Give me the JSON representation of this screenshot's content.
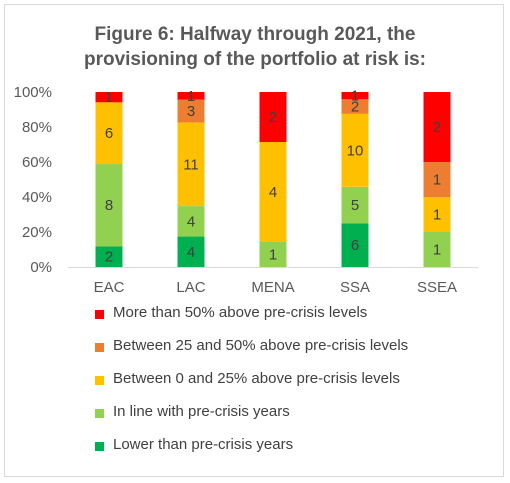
{
  "chart_data": {
    "type": "bar",
    "stacked": "percent",
    "title": "Figure 6: Halfway through 2021, the provisioning of the portfolio at risk is:",
    "title_lines": [
      "Figure 6: Halfway through 2021, the",
      "provisioning of the portfolio at risk is:"
    ],
    "categories": [
      "EAC",
      "LAC",
      "MENA",
      "SSA",
      "SSEA"
    ],
    "y_ticks": [
      "0%",
      "20%",
      "40%",
      "60%",
      "80%",
      "100%"
    ],
    "ylim": [
      0,
      100
    ],
    "grid": false,
    "legend_position": "bottom",
    "series": [
      {
        "name": "Lower than pre-crisis years",
        "color": "#00b050",
        "values": [
          2,
          4,
          0,
          6,
          0
        ]
      },
      {
        "name": "In line with pre-crisis years",
        "color": "#92d050",
        "values": [
          8,
          4,
          1,
          5,
          1
        ]
      },
      {
        "name": "Between 0 and 25% above pre-crisis levels",
        "color": "#ffc000",
        "values": [
          6,
          11,
          4,
          10,
          1
        ]
      },
      {
        "name": "Between 25 and 50% above pre-crisis levels",
        "color": "#ed7d31",
        "values": [
          0,
          3,
          0,
          2,
          1
        ]
      },
      {
        "name": "More than 50% above pre-crisis levels",
        "color": "#ff0000",
        "values": [
          1,
          1,
          2,
          1,
          2
        ]
      }
    ],
    "legend_order": [
      4,
      3,
      2,
      1,
      0
    ]
  }
}
